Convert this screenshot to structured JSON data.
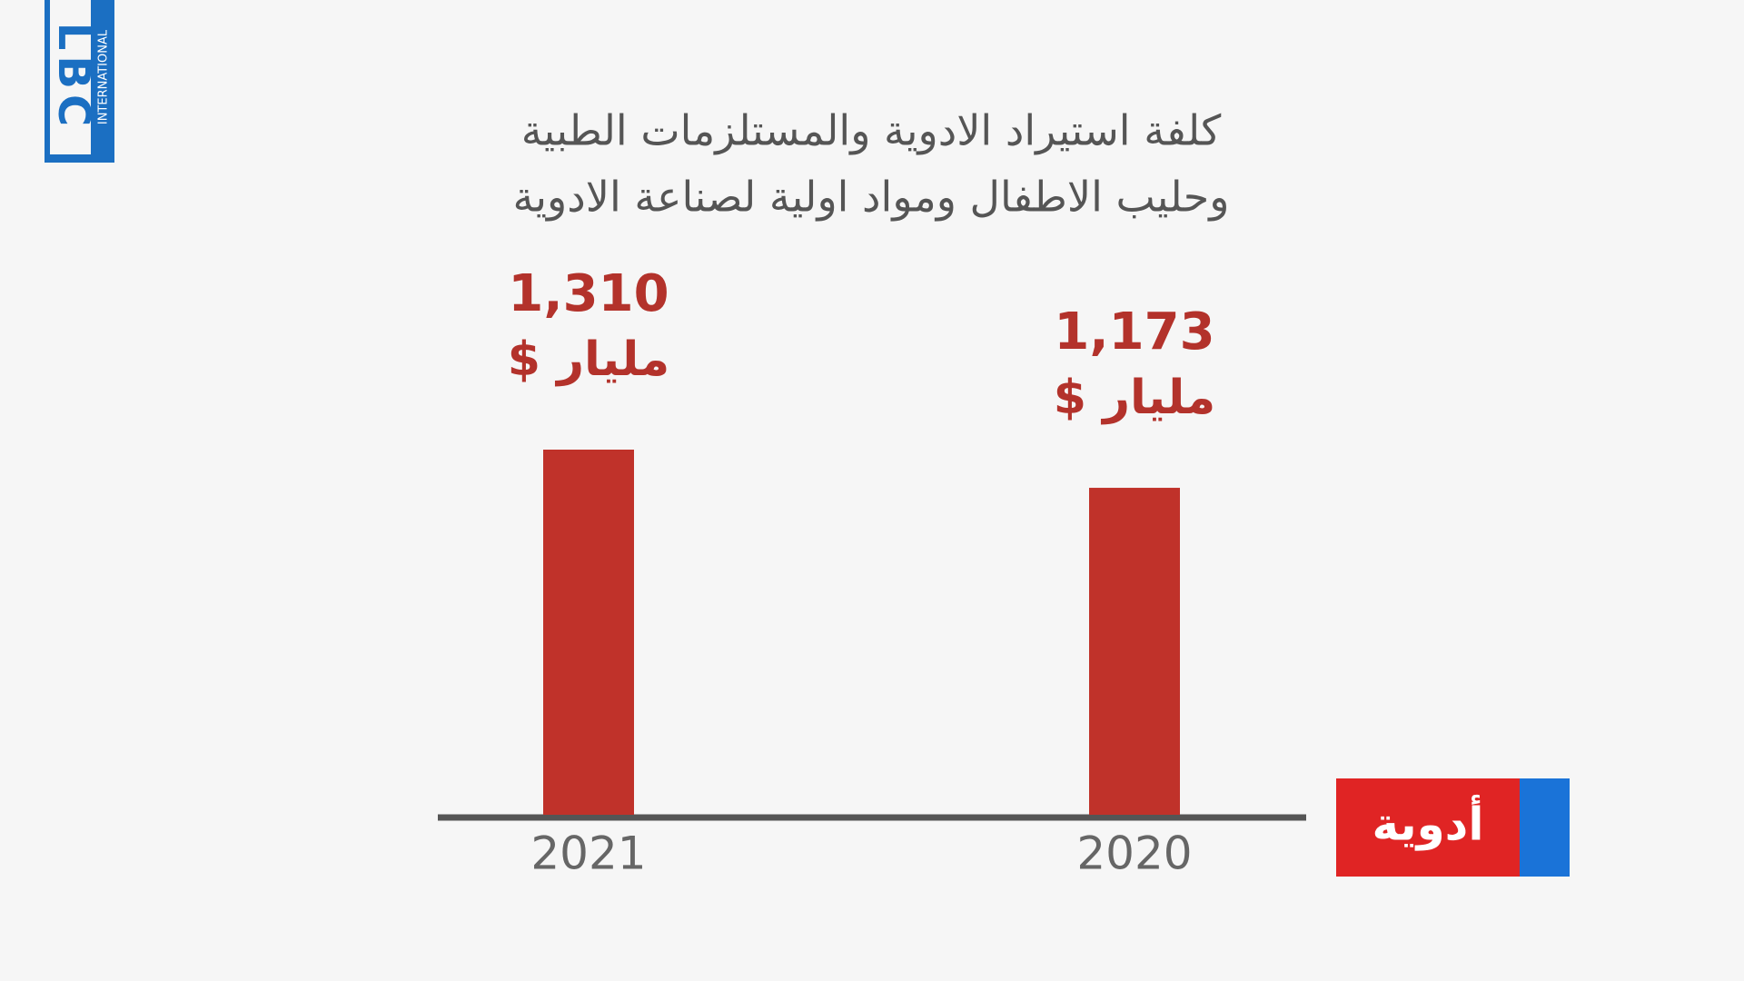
{
  "logo": {
    "name": "LBC",
    "subtitle": "INTERNATIONAL"
  },
  "tag": "أدوية",
  "chart_data": {
    "type": "bar",
    "title": [
      "كلفة استيراد الادوية والمستلزمات الطبية",
      "وحليب الاطفال ومواد اولية لصناعة الادوية"
    ],
    "categories": [
      "2021",
      "2020"
    ],
    "values": [
      1.31,
      1.173
    ],
    "value_labels": [
      "1,310",
      "1,173"
    ],
    "value_unit": "مليار $",
    "color": "#c0322a"
  }
}
